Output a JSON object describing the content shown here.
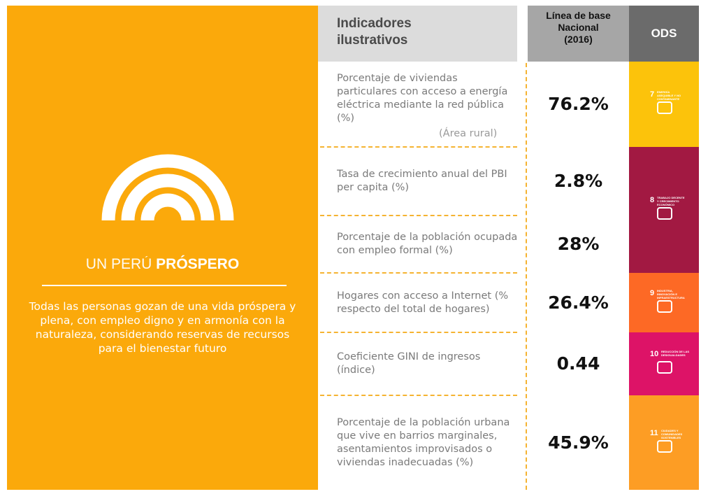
{
  "vision": {
    "title_light": "UN PERÚ",
    "title_bold": "PRÓSPERO",
    "text": "Todas las personas gozan de una vida próspera y plena, con empleo digno y en armonía con la naturaleza, considerando reservas de recursos para el bienestar futuro"
  },
  "table": {
    "headers": [
      "Indicadores\nilustrativos",
      "Línea de base\nNacional\n(2016)",
      "ODS"
    ],
    "rows": [
      {
        "lines": [
          "Porcentaje de viviendas",
          "particulares con acceso a energía",
          "eléctrica mediante la red pública",
          "(%)"
        ],
        "note": "(Área rural)",
        "value": "76.2%"
      },
      {
        "lines": [
          "Tasa de crecimiento anual del PBI",
          "per capita (%)"
        ],
        "value": "2.8%"
      },
      {
        "lines": [
          "Porcentaje de la población ocupada",
          "con empleo formal (%)"
        ],
        "value": "28%"
      },
      {
        "lines": [
          "Hogares con acceso a Internet (%",
          "respecto del total de hogares)"
        ],
        "value": "26.4%"
      },
      {
        "lines": [
          "Coeficiente GINI de ingresos",
          "(índice)"
        ],
        "value": "0.44"
      },
      {
        "lines": [
          "Porcentaje de la población urbana",
          "que vive en barrios marginales,",
          "asentamientos improvisados o",
          "viviendas inadecuadas (%)"
        ],
        "value": "45.9%"
      }
    ],
    "ods": [
      {
        "number": "7",
        "label": "ENERGÍA ASEQUIBLE Y NO CONTAMINANTE"
      },
      {
        "number": "8",
        "label": "TRABAJO DECENTE Y CRECIMIENTO ECONÓMICO"
      },
      {
        "number": "9",
        "label": "INDUSTRIA, INNOVACIÓN E INFRAESTRUCTURA"
      },
      {
        "number": "10",
        "label": "REDUCCIÓN DE LAS DESIGUALDADES"
      },
      {
        "number": "11",
        "label": "CIUDADES Y COMUNIDADES SOSTENIBLES"
      }
    ]
  }
}
